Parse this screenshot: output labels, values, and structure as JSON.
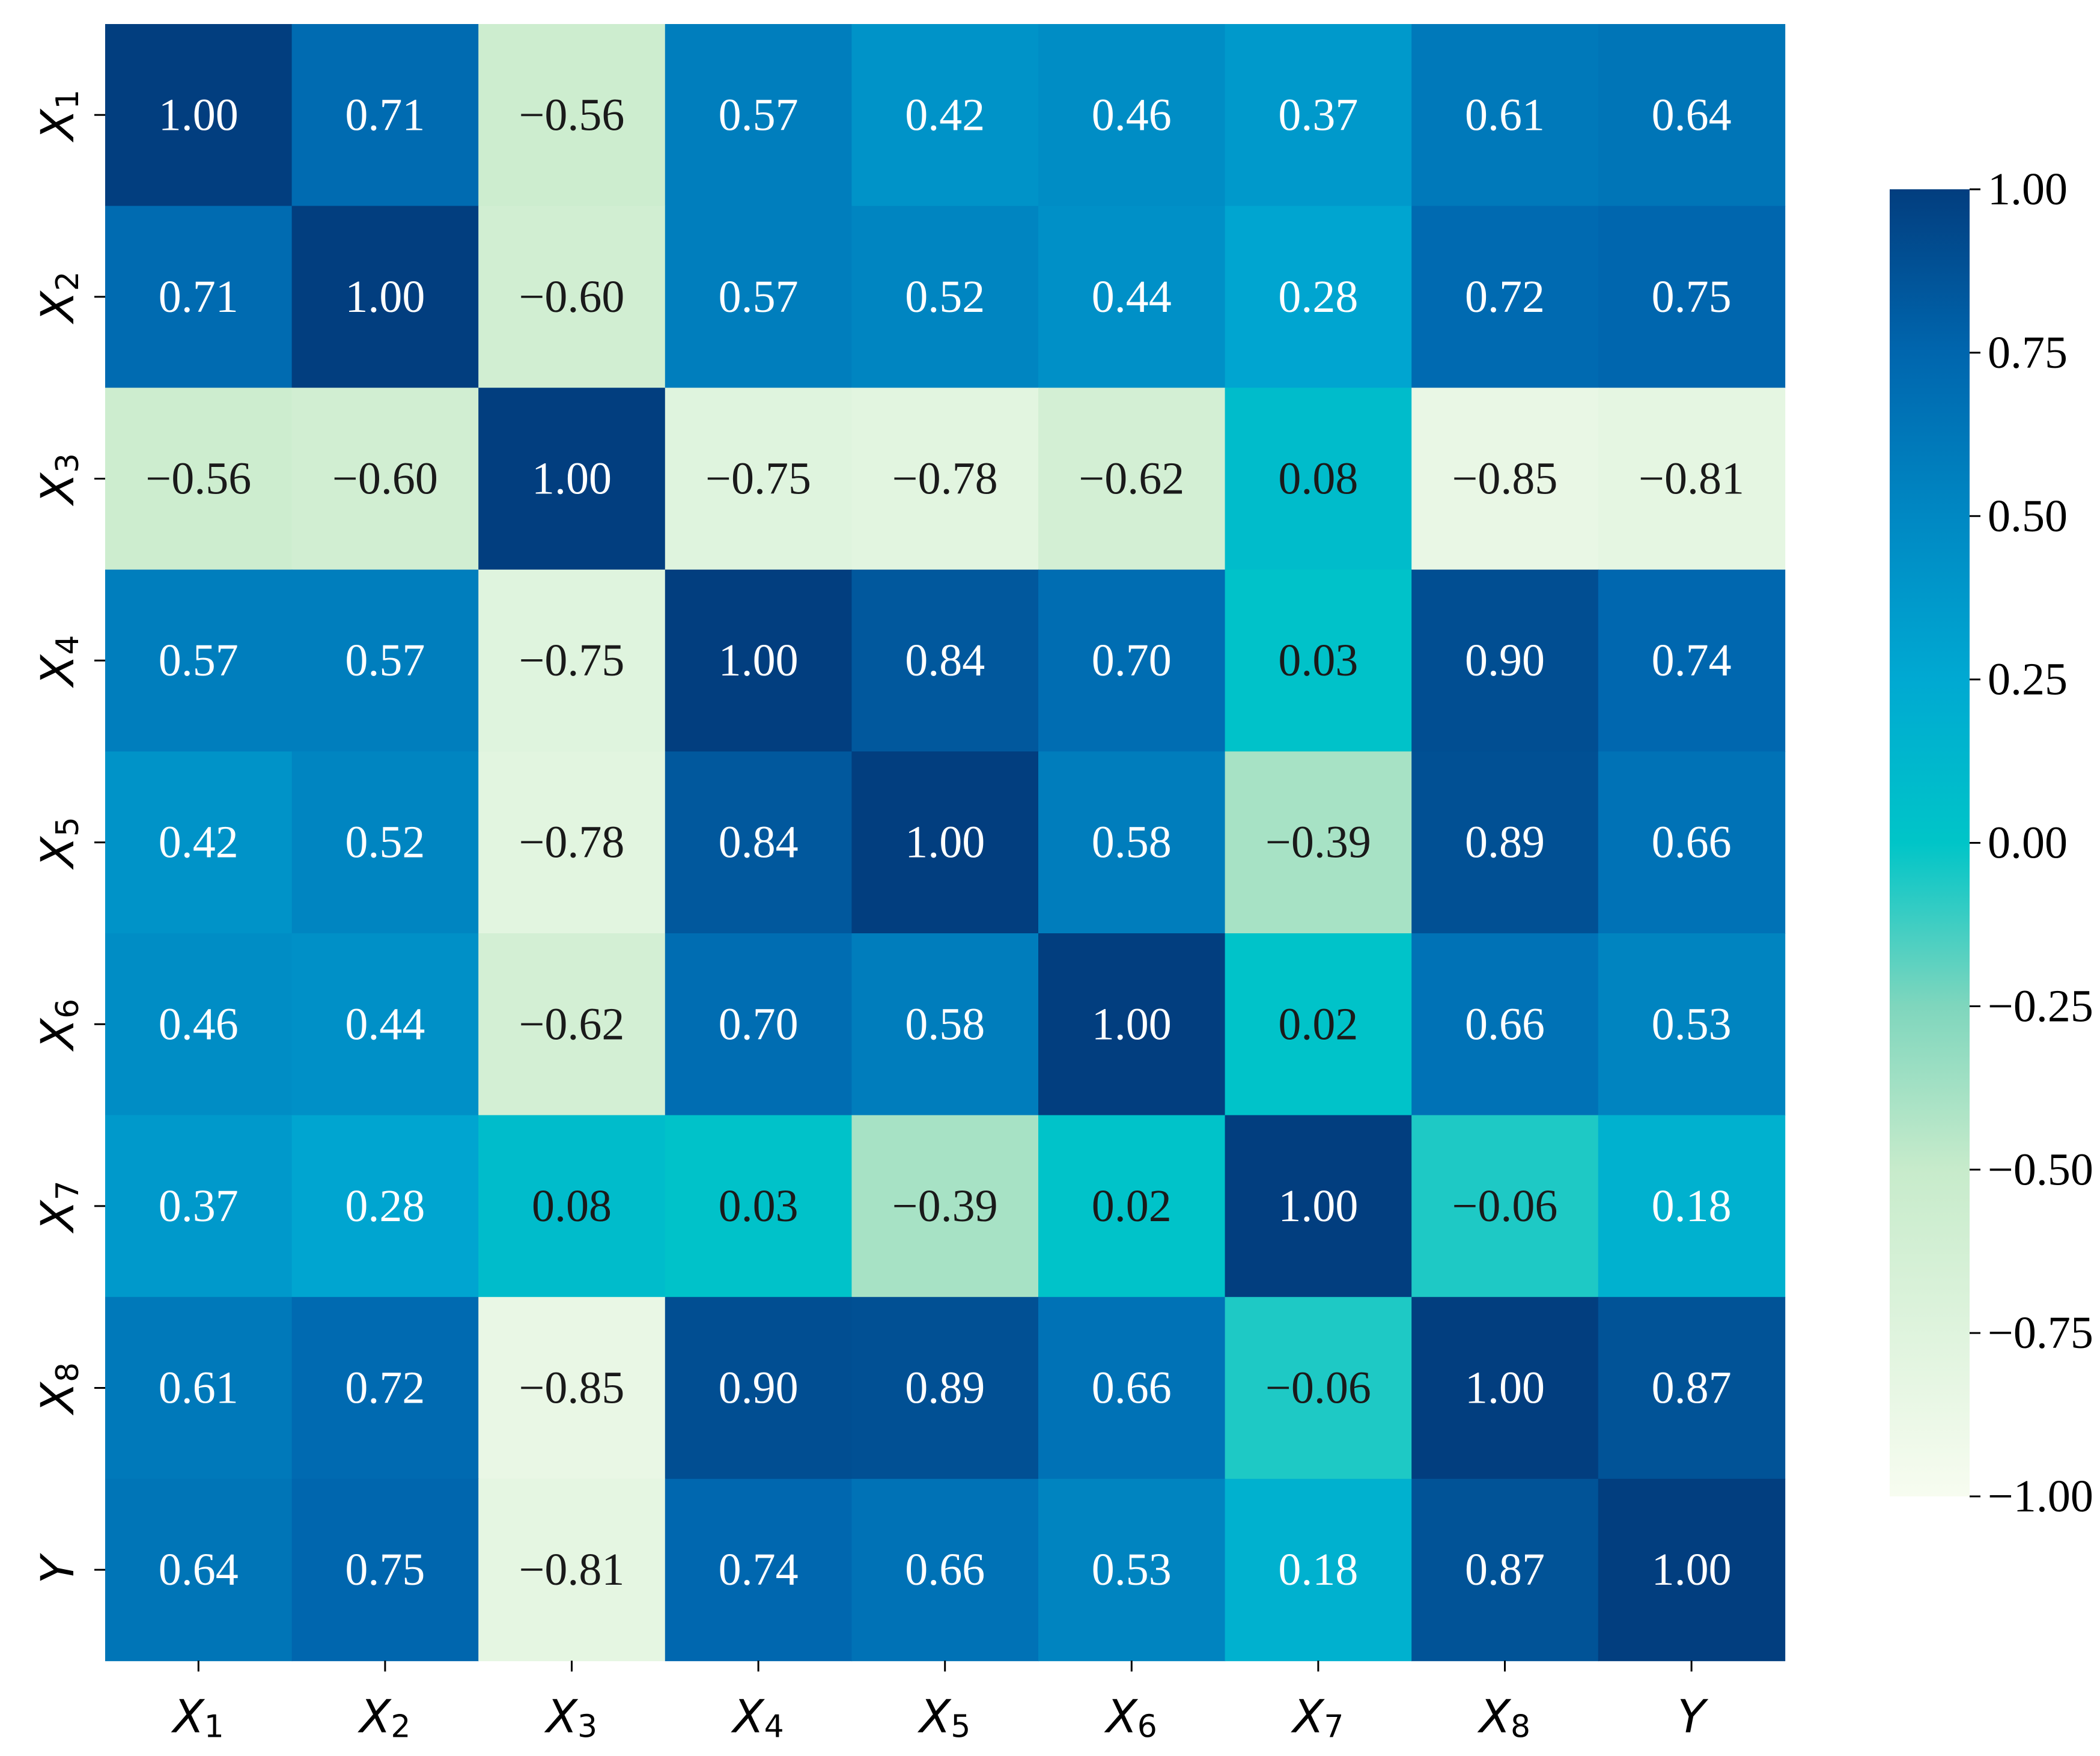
{
  "chart_data": {
    "type": "heatmap",
    "title": "",
    "xlabel": "",
    "ylabel": "",
    "labels": [
      {
        "base": "X",
        "sub": "1"
      },
      {
        "base": "X",
        "sub": "2"
      },
      {
        "base": "X",
        "sub": "3"
      },
      {
        "base": "X",
        "sub": "4"
      },
      {
        "base": "X",
        "sub": "5"
      },
      {
        "base": "X",
        "sub": "6"
      },
      {
        "base": "X",
        "sub": "7"
      },
      {
        "base": "X",
        "sub": "8"
      },
      {
        "base": "Y",
        "sub": ""
      }
    ],
    "matrix": [
      [
        1.0,
        0.71,
        -0.56,
        0.57,
        0.42,
        0.46,
        0.37,
        0.61,
        0.64
      ],
      [
        0.71,
        1.0,
        -0.6,
        0.57,
        0.52,
        0.44,
        0.28,
        0.72,
        0.75
      ],
      [
        -0.56,
        -0.6,
        1.0,
        -0.75,
        -0.78,
        -0.62,
        0.08,
        -0.85,
        -0.81
      ],
      [
        0.57,
        0.57,
        -0.75,
        1.0,
        0.84,
        0.7,
        0.03,
        0.9,
        0.74
      ],
      [
        0.42,
        0.52,
        -0.78,
        0.84,
        1.0,
        0.58,
        -0.39,
        0.89,
        0.66
      ],
      [
        0.46,
        0.44,
        -0.62,
        0.7,
        0.58,
        1.0,
        0.02,
        0.66,
        0.53
      ],
      [
        0.37,
        0.28,
        0.08,
        0.03,
        -0.39,
        0.02,
        1.0,
        -0.06,
        0.18
      ],
      [
        0.61,
        0.72,
        -0.85,
        0.9,
        0.89,
        0.66,
        -0.06,
        1.0,
        0.87
      ],
      [
        0.64,
        0.75,
        -0.81,
        0.74,
        0.66,
        0.53,
        0.18,
        0.87,
        1.0
      ]
    ],
    "value_format": "2 decimals, minus sign as −",
    "colormap": "GnBu-style teal/blue",
    "color_stops": [
      {
        "value": -1.0,
        "color": "#f7fcf0"
      },
      {
        "value": -0.5,
        "color": "#c7ebcb"
      },
      {
        "value": -0.25,
        "color": "#7fd6bd"
      },
      {
        "value": 0.0,
        "color": "#00c5c8"
      },
      {
        "value": 0.25,
        "color": "#00a9d2"
      },
      {
        "value": 0.5,
        "color": "#0088c3"
      },
      {
        "value": 0.75,
        "color": "#0066ae"
      },
      {
        "value": 1.0,
        "color": "#023e7f"
      }
    ],
    "colorbar": {
      "range": [
        -1.0,
        1.0
      ],
      "ticks": [
        1.0,
        0.75,
        0.5,
        0.25,
        0.0,
        -0.25,
        -0.5,
        -0.75,
        -1.0
      ],
      "tick_labels": [
        "1.00",
        "0.75",
        "0.50",
        "0.25",
        "0.00",
        "−0.25",
        "−0.50",
        "−0.75",
        "−1.00"
      ]
    },
    "text_color_light": "#ffffff",
    "text_color_dark": "#1a1a1a",
    "grid": false,
    "colorbar_position": "right"
  }
}
